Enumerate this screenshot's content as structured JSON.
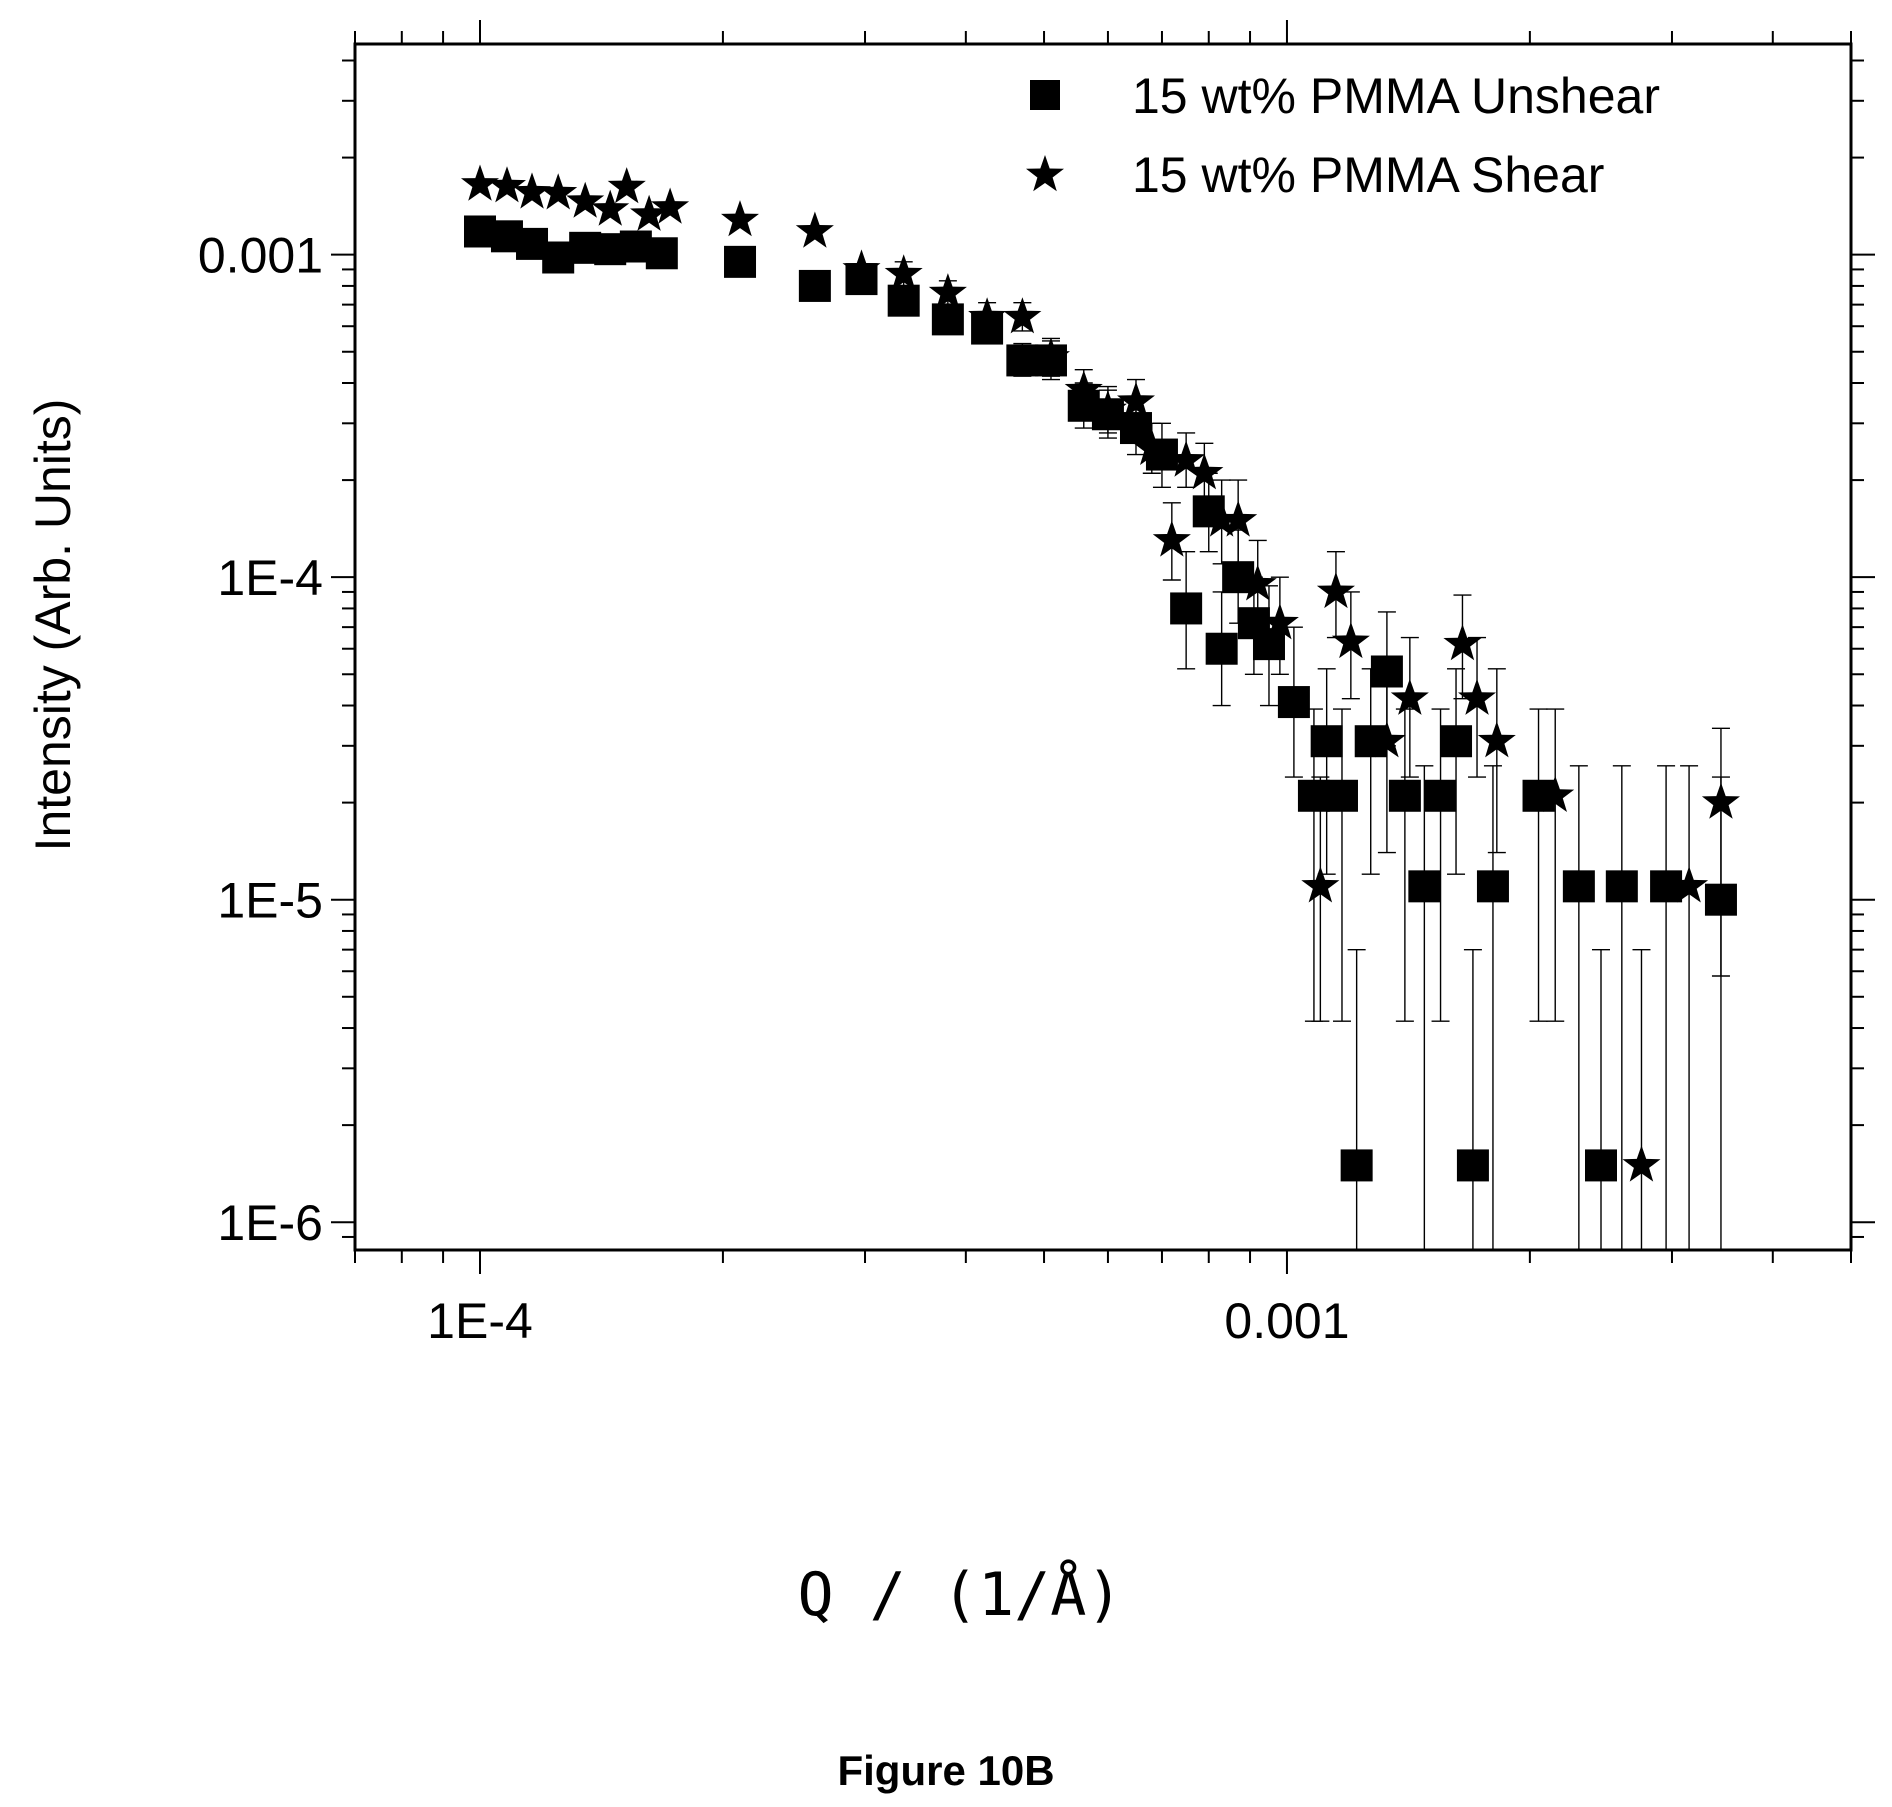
{
  "chart_data": {
    "type": "scatter",
    "title": "",
    "xlabel": "Q / (1/Å)",
    "ylabel": "Intensity (Arb. Units)",
    "xscale": "log",
    "yscale": "log",
    "xlim": [
      7e-05,
      0.005
    ],
    "ylim": [
      8.2e-07,
      0.0045
    ],
    "x_ticks": [
      {
        "value": 0.0001,
        "label": "1E-4"
      },
      {
        "value": 0.001,
        "label": "0.001"
      }
    ],
    "y_ticks": [
      {
        "value": 1e-06,
        "label": "1E-6"
      },
      {
        "value": 1e-05,
        "label": "1E-5"
      },
      {
        "value": 0.0001,
        "label": "1E-4"
      },
      {
        "value": 0.001,
        "label": "0.001"
      }
    ],
    "legend_position": "top-right",
    "error_bars": true,
    "series": [
      {
        "name": "15 wt% PMMA Unshear",
        "marker": "square",
        "color": "#000000",
        "points": [
          {
            "x": 0.0001,
            "y": 0.00118
          },
          {
            "x": 0.000108,
            "y": 0.00114
          },
          {
            "x": 0.000116,
            "y": 0.00108
          },
          {
            "x": 0.000125,
            "y": 0.00098
          },
          {
            "x": 0.000135,
            "y": 0.00105
          },
          {
            "x": 0.000145,
            "y": 0.00104
          },
          {
            "x": 0.000156,
            "y": 0.00106
          },
          {
            "x": 0.000168,
            "y": 0.00101
          },
          {
            "x": 0.00021,
            "y": 0.00095
          },
          {
            "x": 0.00026,
            "y": 0.0008
          },
          {
            "x": 0.000297,
            "y": 0.00084
          },
          {
            "x": 0.000335,
            "y": 0.00072,
            "err": [
              0.00065,
              0.0008
            ]
          },
          {
            "x": 0.00038,
            "y": 0.00063,
            "err": [
              0.00057,
              0.0007
            ]
          },
          {
            "x": 0.000425,
            "y": 0.00059,
            "err": [
              0.00053,
              0.00066
            ]
          },
          {
            "x": 0.00047,
            "y": 0.00047,
            "err": [
              0.00042,
              0.00053
            ]
          },
          {
            "x": 0.00051,
            "y": 0.00047,
            "err": [
              0.00041,
              0.00054
            ]
          },
          {
            "x": 0.00056,
            "y": 0.00034,
            "err": [
              0.00029,
              0.0004
            ]
          },
          {
            "x": 0.0006,
            "y": 0.00032,
            "err": [
              0.00027,
              0.00038
            ]
          },
          {
            "x": 0.00065,
            "y": 0.00029,
            "err": [
              0.00024,
              0.00035
            ]
          },
          {
            "x": 0.0007,
            "y": 0.00024,
            "err": [
              0.00019,
              0.0003
            ]
          },
          {
            "x": 0.00075,
            "y": 8e-05,
            "err": [
              5.2e-05,
              0.00012
            ]
          },
          {
            "x": 0.0008,
            "y": 0.00016,
            "err": [
              0.00012,
              0.00021
            ]
          },
          {
            "x": 0.00083,
            "y": 6e-05,
            "err": [
              4e-05,
              9e-05
            ]
          },
          {
            "x": 0.00087,
            "y": 0.0001,
            "err": [
              7.2e-05,
              0.00014
            ]
          },
          {
            "x": 0.00091,
            "y": 7.2e-05,
            "err": [
              5e-05,
              0.0001
            ]
          },
          {
            "x": 0.00095,
            "y": 6.2e-05,
            "err": [
              4e-05,
              9.4e-05
            ]
          },
          {
            "x": 0.00102,
            "y": 4.1e-05,
            "err": [
              2.4e-05,
              7e-05
            ]
          },
          {
            "x": 0.00108,
            "y": 2.1e-05,
            "err": [
              4.2e-06,
              3.9e-05
            ]
          },
          {
            "x": 0.00112,
            "y": 3.1e-05,
            "err": [
              1.2e-05,
              5.2e-05
            ]
          },
          {
            "x": 0.00117,
            "y": 2.1e-05,
            "err": [
              4.2e-06,
              3.9e-05
            ]
          },
          {
            "x": 0.00122,
            "y": 1.5e-06,
            "err": [
              8.2e-07,
              7e-06
            ]
          },
          {
            "x": 0.00127,
            "y": 3.1e-05,
            "err": [
              1.2e-05,
              5.2e-05
            ]
          },
          {
            "x": 0.00133,
            "y": 5.1e-05,
            "err": [
              3e-05,
              7.8e-05
            ]
          },
          {
            "x": 0.0014,
            "y": 2.1e-05,
            "err": [
              4.2e-06,
              3.9e-05
            ]
          },
          {
            "x": 0.00148,
            "y": 1.1e-05,
            "err": [
              8.2e-07,
              2.6e-05
            ]
          },
          {
            "x": 0.00155,
            "y": 2.1e-05,
            "err": [
              4.2e-06,
              3.9e-05
            ]
          },
          {
            "x": 0.00162,
            "y": 3.1e-05,
            "err": [
              1.2e-05,
              5.2e-05
            ]
          },
          {
            "x": 0.0017,
            "y": 1.5e-06,
            "err": [
              8.2e-07,
              7e-06
            ]
          },
          {
            "x": 0.0018,
            "y": 1.1e-05,
            "err": [
              8.2e-07,
              2.6e-05
            ]
          },
          {
            "x": 0.00205,
            "y": 2.1e-05,
            "err": [
              4.2e-06,
              3.9e-05
            ]
          },
          {
            "x": 0.0023,
            "y": 1.1e-05,
            "err": [
              8.2e-07,
              2.6e-05
            ]
          },
          {
            "x": 0.00245,
            "y": 1.5e-06,
            "err": [
              8.2e-07,
              7e-06
            ]
          },
          {
            "x": 0.0026,
            "y": 1.1e-05,
            "err": [
              8.2e-07,
              2.6e-05
            ]
          },
          {
            "x": 0.00295,
            "y": 1.1e-05,
            "err": [
              8.2e-07,
              2.6e-05
            ]
          },
          {
            "x": 0.00345,
            "y": 1e-05,
            "err": [
              8.2e-07,
              2.4e-05
            ]
          }
        ]
      },
      {
        "name": "15 wt% PMMA Shear",
        "marker": "star",
        "color": "#000000",
        "points": [
          {
            "x": 0.0001,
            "y": 0.00165
          },
          {
            "x": 0.000108,
            "y": 0.00163
          },
          {
            "x": 0.000116,
            "y": 0.00156
          },
          {
            "x": 0.000125,
            "y": 0.00155
          },
          {
            "x": 0.000135,
            "y": 0.00146
          },
          {
            "x": 0.000145,
            "y": 0.00138
          },
          {
            "x": 0.000152,
            "y": 0.00162
          },
          {
            "x": 0.000162,
            "y": 0.00133
          },
          {
            "x": 0.000172,
            "y": 0.0014
          },
          {
            "x": 0.00021,
            "y": 0.00128
          },
          {
            "x": 0.00026,
            "y": 0.00118
          },
          {
            "x": 0.000297,
            "y": 0.0009
          },
          {
            "x": 0.000335,
            "y": 0.00087,
            "err": [
              0.0008,
              0.00095
            ]
          },
          {
            "x": 0.00038,
            "y": 0.00076,
            "err": [
              0.00069,
              0.00083
            ]
          },
          {
            "x": 0.000425,
            "y": 0.00064,
            "err": [
              0.00058,
              0.00071
            ]
          },
          {
            "x": 0.00047,
            "y": 0.00064,
            "err": [
              0.00058,
              0.00071
            ]
          },
          {
            "x": 0.00051,
            "y": 0.00048,
            "err": [
              0.00042,
              0.00055
            ]
          },
          {
            "x": 0.00056,
            "y": 0.00038,
            "err": [
              0.00033,
              0.00044
            ]
          },
          {
            "x": 0.0006,
            "y": 0.00033,
            "err": [
              0.00028,
              0.00039
            ]
          },
          {
            "x": 0.00065,
            "y": 0.00035,
            "err": [
              0.0003,
              0.00041
            ]
          },
          {
            "x": 0.00068,
            "y": 0.00025,
            "err": [
              0.00021,
              0.0003
            ]
          },
          {
            "x": 0.00072,
            "y": 0.00013,
            "err": [
              9.8e-05,
              0.00017
            ]
          },
          {
            "x": 0.00075,
            "y": 0.00023,
            "err": [
              0.00019,
              0.00028
            ]
          },
          {
            "x": 0.00079,
            "y": 0.00021,
            "err": [
              0.00017,
              0.00026
            ]
          },
          {
            "x": 0.00083,
            "y": 0.00015,
            "err": [
              0.00011,
              0.0002
            ]
          },
          {
            "x": 0.00087,
            "y": 0.00015,
            "err": [
              0.00011,
              0.0002
            ]
          },
          {
            "x": 0.00092,
            "y": 9.5e-05,
            "err": [
              6.8e-05,
              0.00013
            ]
          },
          {
            "x": 0.00098,
            "y": 7.2e-05,
            "err": [
              5e-05,
              0.0001
            ]
          },
          {
            "x": 0.0011,
            "y": 1.1e-05,
            "err": [
              4.2e-06,
              2.4e-05
            ]
          },
          {
            "x": 0.00115,
            "y": 9e-05,
            "err": [
              6.5e-05,
              0.00012
            ]
          },
          {
            "x": 0.0012,
            "y": 6.3e-05,
            "err": [
              4.2e-05,
              9e-05
            ]
          },
          {
            "x": 0.00133,
            "y": 3.1e-05,
            "err": [
              1.4e-05,
              5.2e-05
            ]
          },
          {
            "x": 0.00142,
            "y": 4.2e-05,
            "err": [
              2.4e-05,
              6.5e-05
            ]
          },
          {
            "x": 0.00165,
            "y": 6.2e-05,
            "err": [
              4.2e-05,
              8.8e-05
            ]
          },
          {
            "x": 0.00172,
            "y": 4.2e-05,
            "err": [
              2.4e-05,
              6.5e-05
            ]
          },
          {
            "x": 0.00182,
            "y": 3.1e-05,
            "err": [
              1.4e-05,
              5.2e-05
            ]
          },
          {
            "x": 0.00215,
            "y": 2.1e-05,
            "err": [
              4.2e-06,
              3.9e-05
            ]
          },
          {
            "x": 0.00275,
            "y": 1.5e-06,
            "err": [
              8.2e-07,
              7e-06
            ]
          },
          {
            "x": 0.00315,
            "y": 1.1e-05,
            "err": [
              8.2e-07,
              2.6e-05
            ]
          },
          {
            "x": 0.00345,
            "y": 2e-05,
            "err": [
              5.8e-06,
              3.4e-05
            ]
          }
        ]
      }
    ]
  },
  "caption": "Figure 10B"
}
